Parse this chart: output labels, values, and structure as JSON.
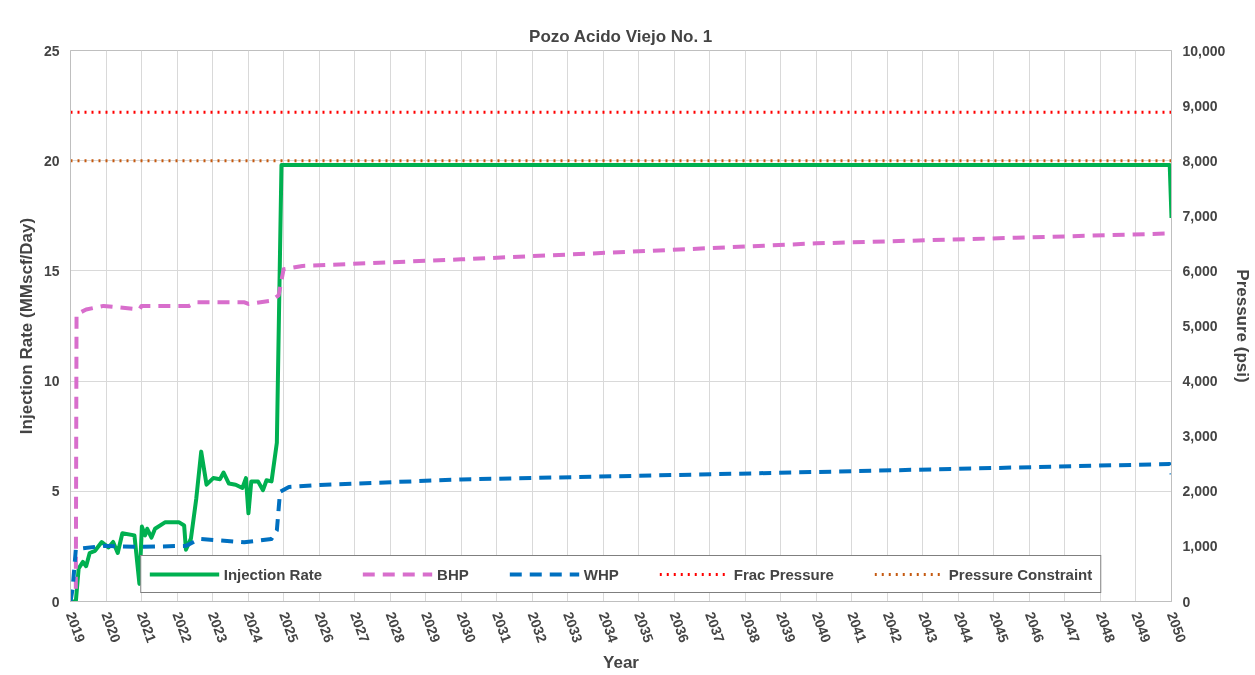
{
  "chart_data": {
    "type": "line",
    "title": "Pozo Acido Viejo No. 1",
    "xlabel": "Year",
    "ylabel": "Injection Rate (MMscf/Day)",
    "y2label": "Pressure (psi)",
    "xlim": [
      2019,
      2050
    ],
    "xticks": [
      2019,
      2020,
      2021,
      2022,
      2023,
      2024,
      2025,
      2026,
      2027,
      2028,
      2029,
      2030,
      2031,
      2032,
      2033,
      2034,
      2035,
      2036,
      2037,
      2038,
      2039,
      2040,
      2041,
      2042,
      2043,
      2044,
      2045,
      2046,
      2047,
      2048,
      2049,
      2050
    ],
    "ylim": [
      0,
      25
    ],
    "yticks": [
      0,
      5,
      10,
      15,
      20,
      25
    ],
    "y2lim": [
      0,
      10000
    ],
    "y2ticks": [
      0,
      {
        "value": 1000,
        "label": "1,000"
      },
      {
        "value": 2000,
        "label": "2,000"
      },
      {
        "value": 3000,
        "label": "3,000"
      },
      {
        "value": 4000,
        "label": "4,000"
      },
      {
        "value": 5000,
        "label": "5,000"
      },
      {
        "value": 6000,
        "label": "6,000"
      },
      {
        "value": 7000,
        "label": "7,000"
      },
      {
        "value": 8000,
        "label": "8,000"
      },
      {
        "value": 9000,
        "label": "9,000"
      },
      {
        "value": 10000,
        "label": "10,000"
      }
    ],
    "grid": true,
    "legend": "bottom",
    "series": [
      {
        "name": "Injection Rate",
        "color": "#00b050",
        "line_style": "solid",
        "x": [
          2019,
          2019.15,
          2019.23,
          2019.35,
          2019.44,
          2019.54,
          2019.69,
          2019.88,
          2020.07,
          2020.2,
          2020.33,
          2020.46,
          2020.8,
          2020.94,
          2021.01,
          2021.1,
          2021.16,
          2021.28,
          2021.38,
          2021.67,
          2022.05,
          2022.2,
          2022.25,
          2022.39,
          2022.54,
          2022.68,
          2022.83,
          2023.02,
          2023.21,
          2023.31,
          2023.46,
          2023.65,
          2023.84,
          2023.94,
          2024.01,
          2024.09,
          2024.28,
          2024.42,
          2024.52,
          2024.66,
          2024.81,
          2024.94,
          2049.95,
          2050
        ],
        "values": [
          0,
          0,
          1.5,
          1.8,
          1.6,
          2.2,
          2.3,
          2.7,
          2.45,
          2.7,
          2.2,
          3.1,
          3.0,
          0.8,
          3.4,
          3.0,
          3.3,
          2.9,
          3.3,
          3.6,
          3.6,
          3.45,
          2.35,
          2.85,
          4.65,
          6.8,
          5.3,
          5.6,
          5.55,
          5.85,
          5.35,
          5.3,
          5.15,
          5.6,
          4.0,
          5.45,
          5.45,
          5.05,
          5.5,
          5.45,
          7.2,
          19.8,
          19.8,
          17.4
        ]
      },
      {
        "name": "BHP",
        "color": "#d86ecc",
        "line_style": "dashed",
        "axis": "y2",
        "x": [
          2019.15,
          2019.17,
          2019.44,
          2019.93,
          2020.94,
          2021.0,
          2022.34,
          2022.54,
          2023.9,
          2024.01,
          2024.66,
          2024.86,
          2025.0,
          2025.53,
          2030,
          2040,
          2049.95
        ],
        "values": [
          230,
          5210,
          5300,
          5365,
          5300,
          5365,
          5365,
          5430,
          5430,
          5400,
          5460,
          5555,
          6030,
          6090,
          6210,
          6500,
          6680
        ]
      },
      {
        "name": "WHP",
        "color": "#0070c0",
        "line_style": "dashed",
        "axis": "y2",
        "x": [
          2019,
          2019.06,
          2019.15,
          2019.93,
          2020.94,
          2022.25,
          2022.63,
          2023.89,
          2024.66,
          2024.81,
          2024.9,
          2025.15,
          2026.02,
          2030,
          2040,
          2049.95,
          2050
        ],
        "values": [
          0,
          230,
          950,
          1010,
          990,
          1010,
          1136,
          1074,
          1136,
          1290,
          1990,
          2080,
          2115,
          2215,
          2350,
          2495,
          2310
        ]
      },
      {
        "name": "Frac Pressure",
        "color": "#ff0000",
        "line_style": "dotted",
        "axis": "y2",
        "x": [
          2019,
          2050
        ],
        "values": [
          8880,
          8880
        ]
      },
      {
        "name": "Pressure Constraint",
        "color": "#c55a11",
        "line_style": "dotted",
        "axis": "y2",
        "x": [
          2019,
          2050
        ],
        "values": [
          8000,
          8000
        ]
      }
    ]
  }
}
